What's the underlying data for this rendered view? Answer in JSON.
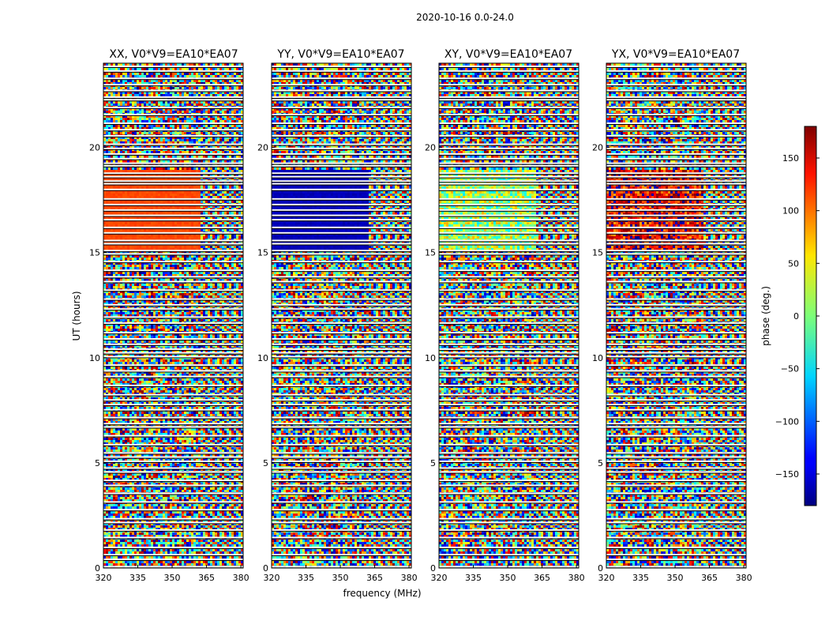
{
  "chart_data": {
    "type": "heatmap",
    "suptitle": "2020-10-16 0.0-24.0",
    "panels": [
      {
        "title": "XX, V0*V9=EA10*EA07",
        "coherent_phase": 110
      },
      {
        "title": "YY, V0*V9=EA10*EA07",
        "coherent_phase": -160
      },
      {
        "title": "XY, V0*V9=EA10*EA07",
        "coherent_phase": 10
      },
      {
        "title": "YX, V0*V9=EA10*EA07",
        "coherent_phase": 140
      }
    ],
    "xlabel": "frequency (MHz)",
    "ylabel": "UT (hours)",
    "xlim": [
      320,
      381
    ],
    "ylim": [
      0,
      24
    ],
    "xticks": [
      "320",
      "335",
      "350",
      "365",
      "380"
    ],
    "yticks": [
      "0",
      "5",
      "10",
      "15",
      "20"
    ],
    "coherent_band_hours": [
      15.1,
      19.0
    ],
    "fringe_start_mhz": 362,
    "colorbar": {
      "label": "phase (deg.)",
      "range": [
        -180,
        180
      ],
      "ticks": [
        "150",
        "100",
        "50",
        "0",
        "−50",
        "−100",
        "−150"
      ],
      "colormap": "jet"
    }
  }
}
